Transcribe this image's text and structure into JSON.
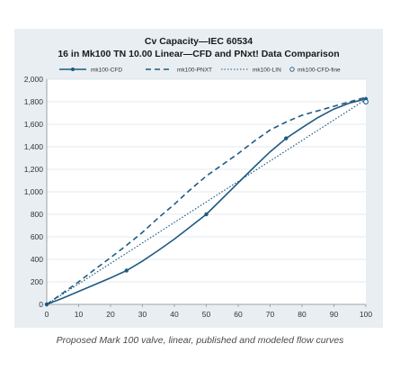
{
  "chart_data": {
    "type": "line",
    "title": "Cv Capacity—IEC 60534",
    "subtitle": "16 in Mk100 TN 10.00 Linear—CFD and PNxt! Data Comparison",
    "xlabel": "",
    "ylabel": "",
    "xlim": [
      0,
      100
    ],
    "ylim": [
      0,
      2000
    ],
    "xticks": [
      0,
      10,
      20,
      30,
      40,
      50,
      60,
      70,
      80,
      90,
      100
    ],
    "yticks": [
      0,
      200,
      400,
      600,
      800,
      1000,
      1200,
      1400,
      1600,
      1800,
      2000
    ],
    "ytick_labels": [
      "0",
      "200",
      "400",
      "600",
      "800",
      "1,000",
      "1,200",
      "1,400",
      "1,600",
      "1,800",
      "2,000"
    ],
    "grid": "horizontal",
    "legend_position": "top",
    "series": [
      {
        "name": "mk100-CFD",
        "style": "solid-with-markers",
        "color": "#1f5a80",
        "points": [
          [
            0,
            0
          ],
          [
            25,
            300
          ],
          [
            50,
            800
          ],
          [
            75,
            1475
          ],
          [
            100,
            1825
          ]
        ],
        "curve": [
          [
            0,
            0
          ],
          [
            5,
            55
          ],
          [
            10,
            115
          ],
          [
            15,
            175
          ],
          [
            20,
            235
          ],
          [
            25,
            300
          ],
          [
            30,
            385
          ],
          [
            35,
            480
          ],
          [
            40,
            580
          ],
          [
            45,
            690
          ],
          [
            50,
            800
          ],
          [
            55,
            940
          ],
          [
            60,
            1080
          ],
          [
            65,
            1220
          ],
          [
            70,
            1355
          ],
          [
            75,
            1475
          ],
          [
            80,
            1570
          ],
          [
            85,
            1660
          ],
          [
            90,
            1735
          ],
          [
            95,
            1790
          ],
          [
            100,
            1825
          ]
        ]
      },
      {
        "name": "mk100-PNXT",
        "style": "dashed",
        "color": "#1f5a80",
        "curve": [
          [
            0,
            0
          ],
          [
            5,
            100
          ],
          [
            10,
            200
          ],
          [
            15,
            310
          ],
          [
            20,
            415
          ],
          [
            25,
            525
          ],
          [
            30,
            640
          ],
          [
            35,
            770
          ],
          [
            40,
            890
          ],
          [
            45,
            1020
          ],
          [
            50,
            1140
          ],
          [
            55,
            1240
          ],
          [
            60,
            1340
          ],
          [
            65,
            1450
          ],
          [
            70,
            1550
          ],
          [
            75,
            1620
          ],
          [
            80,
            1680
          ],
          [
            85,
            1720
          ],
          [
            90,
            1760
          ],
          [
            95,
            1800
          ],
          [
            100,
            1840
          ]
        ]
      },
      {
        "name": "mk100-LIN",
        "style": "dotted",
        "color": "#1f5a80",
        "curve": [
          [
            0,
            0
          ],
          [
            100,
            1820
          ]
        ]
      },
      {
        "name": "mk100-CFD-fine",
        "style": "open-markers",
        "color": "#1f5a80",
        "points": [
          [
            100,
            1800
          ]
        ]
      }
    ]
  },
  "caption": "Proposed Mark 100 valve, linear, published and modeled flow curves"
}
